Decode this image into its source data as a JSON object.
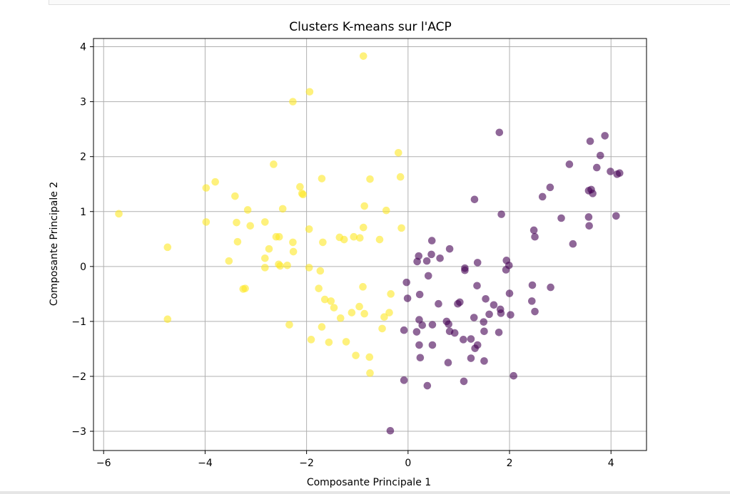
{
  "chart_data": {
    "type": "scatter",
    "title": "Clusters K-means sur l'ACP",
    "xlabel": "Composante Principale 1",
    "ylabel": "Composante Principale 2",
    "xlim": [
      -6.2,
      4.7
    ],
    "ylim": [
      -3.35,
      4.15
    ],
    "xticks": [
      -6,
      -4,
      -2,
      0,
      2,
      4
    ],
    "yticks": [
      -3,
      -2,
      -1,
      0,
      1,
      2,
      3,
      4
    ],
    "tick_labels_x": [
      "−6",
      "−4",
      "−2",
      "0",
      "2",
      "4"
    ],
    "tick_labels_y": [
      "−3",
      "−2",
      "−1",
      "0",
      "1",
      "2",
      "3",
      "4"
    ],
    "grid": true,
    "marker_alpha": 0.6,
    "series": [
      {
        "color": "#fde725",
        "points": [
          [
            -0.88,
            3.83
          ],
          [
            -1.94,
            3.18
          ],
          [
            -2.27,
            3.0
          ],
          [
            -0.19,
            2.07
          ],
          [
            -2.65,
            1.86
          ],
          [
            -0.75,
            1.59
          ],
          [
            -3.8,
            1.54
          ],
          [
            -2.13,
            1.45
          ],
          [
            -3.98,
            1.43
          ],
          [
            -2.09,
            1.33
          ],
          [
            -2.07,
            1.31
          ],
          [
            -1.7,
            1.6
          ],
          [
            -0.15,
            1.63
          ],
          [
            -3.41,
            1.28
          ],
          [
            -0.86,
            1.1
          ],
          [
            -2.47,
            1.05
          ],
          [
            -3.16,
            1.03
          ],
          [
            -0.43,
            1.02
          ],
          [
            -5.7,
            0.96
          ],
          [
            -3.98,
            0.81
          ],
          [
            -2.82,
            0.81
          ],
          [
            -3.38,
            0.8
          ],
          [
            -3.11,
            0.74
          ],
          [
            -0.88,
            0.71
          ],
          [
            -1.95,
            0.68
          ],
          [
            -0.13,
            0.7
          ],
          [
            -2.6,
            0.54
          ],
          [
            -2.54,
            0.54
          ],
          [
            -1.35,
            0.53
          ],
          [
            -1.07,
            0.54
          ],
          [
            -0.95,
            0.52
          ],
          [
            -0.56,
            0.49
          ],
          [
            -1.68,
            0.44
          ],
          [
            -2.27,
            0.44
          ],
          [
            -3.36,
            0.45
          ],
          [
            -1.26,
            0.49
          ],
          [
            -4.74,
            0.35
          ],
          [
            -2.74,
            0.32
          ],
          [
            -2.26,
            0.27
          ],
          [
            -2.82,
            0.15
          ],
          [
            -3.53,
            0.1
          ],
          [
            -2.55,
            0.04
          ],
          [
            -2.52,
            0.01
          ],
          [
            -2.38,
            0.02
          ],
          [
            -2.82,
            -0.02
          ],
          [
            -1.95,
            -0.02
          ],
          [
            -1.73,
            -0.08
          ],
          [
            -3.21,
            -0.4
          ],
          [
            -3.25,
            -0.41
          ],
          [
            -1.76,
            -0.4
          ],
          [
            -0.89,
            -0.37
          ],
          [
            -1.64,
            -0.6
          ],
          [
            -1.52,
            -0.63
          ],
          [
            -0.34,
            -0.5
          ],
          [
            -1.46,
            -0.75
          ],
          [
            -0.96,
            -0.73
          ],
          [
            -1.11,
            -0.84
          ],
          [
            -0.86,
            -0.86
          ],
          [
            -0.37,
            -0.84
          ],
          [
            -1.33,
            -0.94
          ],
          [
            -0.47,
            -0.92
          ],
          [
            -4.74,
            -0.96
          ],
          [
            -2.34,
            -1.06
          ],
          [
            -1.7,
            -1.1
          ],
          [
            -0.51,
            -1.13
          ],
          [
            -1.91,
            -1.33
          ],
          [
            -1.56,
            -1.38
          ],
          [
            -1.22,
            -1.37
          ],
          [
            -0.76,
            -1.65
          ],
          [
            -1.03,
            -1.62
          ],
          [
            -0.75,
            -1.94
          ]
        ]
      },
      {
        "color": "#440154",
        "points": [
          [
            1.8,
            2.44
          ],
          [
            3.59,
            2.28
          ],
          [
            3.88,
            2.38
          ],
          [
            3.79,
            2.02
          ],
          [
            3.18,
            1.86
          ],
          [
            3.72,
            1.8
          ],
          [
            3.99,
            1.73
          ],
          [
            4.12,
            1.68
          ],
          [
            4.17,
            1.7
          ],
          [
            2.8,
            1.44
          ],
          [
            3.56,
            1.38
          ],
          [
            3.61,
            1.4
          ],
          [
            3.64,
            1.33
          ],
          [
            2.65,
            1.27
          ],
          [
            1.31,
            1.22
          ],
          [
            1.84,
            0.95
          ],
          [
            3.02,
            0.88
          ],
          [
            3.56,
            0.9
          ],
          [
            4.1,
            0.92
          ],
          [
            3.57,
            0.74
          ],
          [
            2.48,
            0.66
          ],
          [
            2.5,
            0.54
          ],
          [
            3.25,
            0.41
          ],
          [
            0.47,
            0.47
          ],
          [
            0.82,
            0.32
          ],
          [
            0.21,
            0.19
          ],
          [
            0.46,
            0.22
          ],
          [
            0.63,
            0.15
          ],
          [
            0.18,
            0.09
          ],
          [
            0.37,
            0.1
          ],
          [
            1.37,
            0.07
          ],
          [
            1.94,
            0.11
          ],
          [
            1.99,
            0.02
          ],
          [
            1.12,
            -0.03
          ],
          [
            1.12,
            -0.07
          ],
          [
            1.93,
            -0.06
          ],
          [
            0.4,
            -0.17
          ],
          [
            -0.03,
            -0.29
          ],
          [
            2.45,
            -0.34
          ],
          [
            1.36,
            -0.35
          ],
          [
            2.81,
            -0.38
          ],
          [
            2.0,
            -0.49
          ],
          [
            0.23,
            -0.51
          ],
          [
            -0.01,
            -0.58
          ],
          [
            1.53,
            -0.59
          ],
          [
            2.44,
            -0.63
          ],
          [
            0.98,
            -0.68
          ],
          [
            1.02,
            -0.65
          ],
          [
            1.69,
            -0.7
          ],
          [
            0.6,
            -0.68
          ],
          [
            1.82,
            -0.78
          ],
          [
            2.5,
            -0.82
          ],
          [
            1.6,
            -0.87
          ],
          [
            1.83,
            -0.85
          ],
          [
            2.02,
            -0.88
          ],
          [
            1.3,
            -0.93
          ],
          [
            0.22,
            -0.97
          ],
          [
            0.76,
            -1.0
          ],
          [
            1.49,
            -1.01
          ],
          [
            0.28,
            -1.07
          ],
          [
            0.48,
            -1.06
          ],
          [
            0.8,
            -1.05
          ],
          [
            -0.08,
            -1.16
          ],
          [
            0.82,
            -1.18
          ],
          [
            0.92,
            -1.21
          ],
          [
            1.5,
            -1.18
          ],
          [
            0.17,
            -1.19
          ],
          [
            1.79,
            -1.2
          ],
          [
            1.09,
            -1.33
          ],
          [
            1.24,
            -1.32
          ],
          [
            0.22,
            -1.43
          ],
          [
            0.48,
            -1.43
          ],
          [
            1.37,
            -1.43
          ],
          [
            1.32,
            -1.49
          ],
          [
            0.24,
            -1.66
          ],
          [
            1.24,
            -1.67
          ],
          [
            1.5,
            -1.72
          ],
          [
            0.79,
            -1.75
          ],
          [
            2.08,
            -1.99
          ],
          [
            1.1,
            -2.09
          ],
          [
            -0.08,
            -2.07
          ],
          [
            0.38,
            -2.17
          ],
          [
            -0.35,
            -2.99
          ]
        ]
      }
    ]
  }
}
